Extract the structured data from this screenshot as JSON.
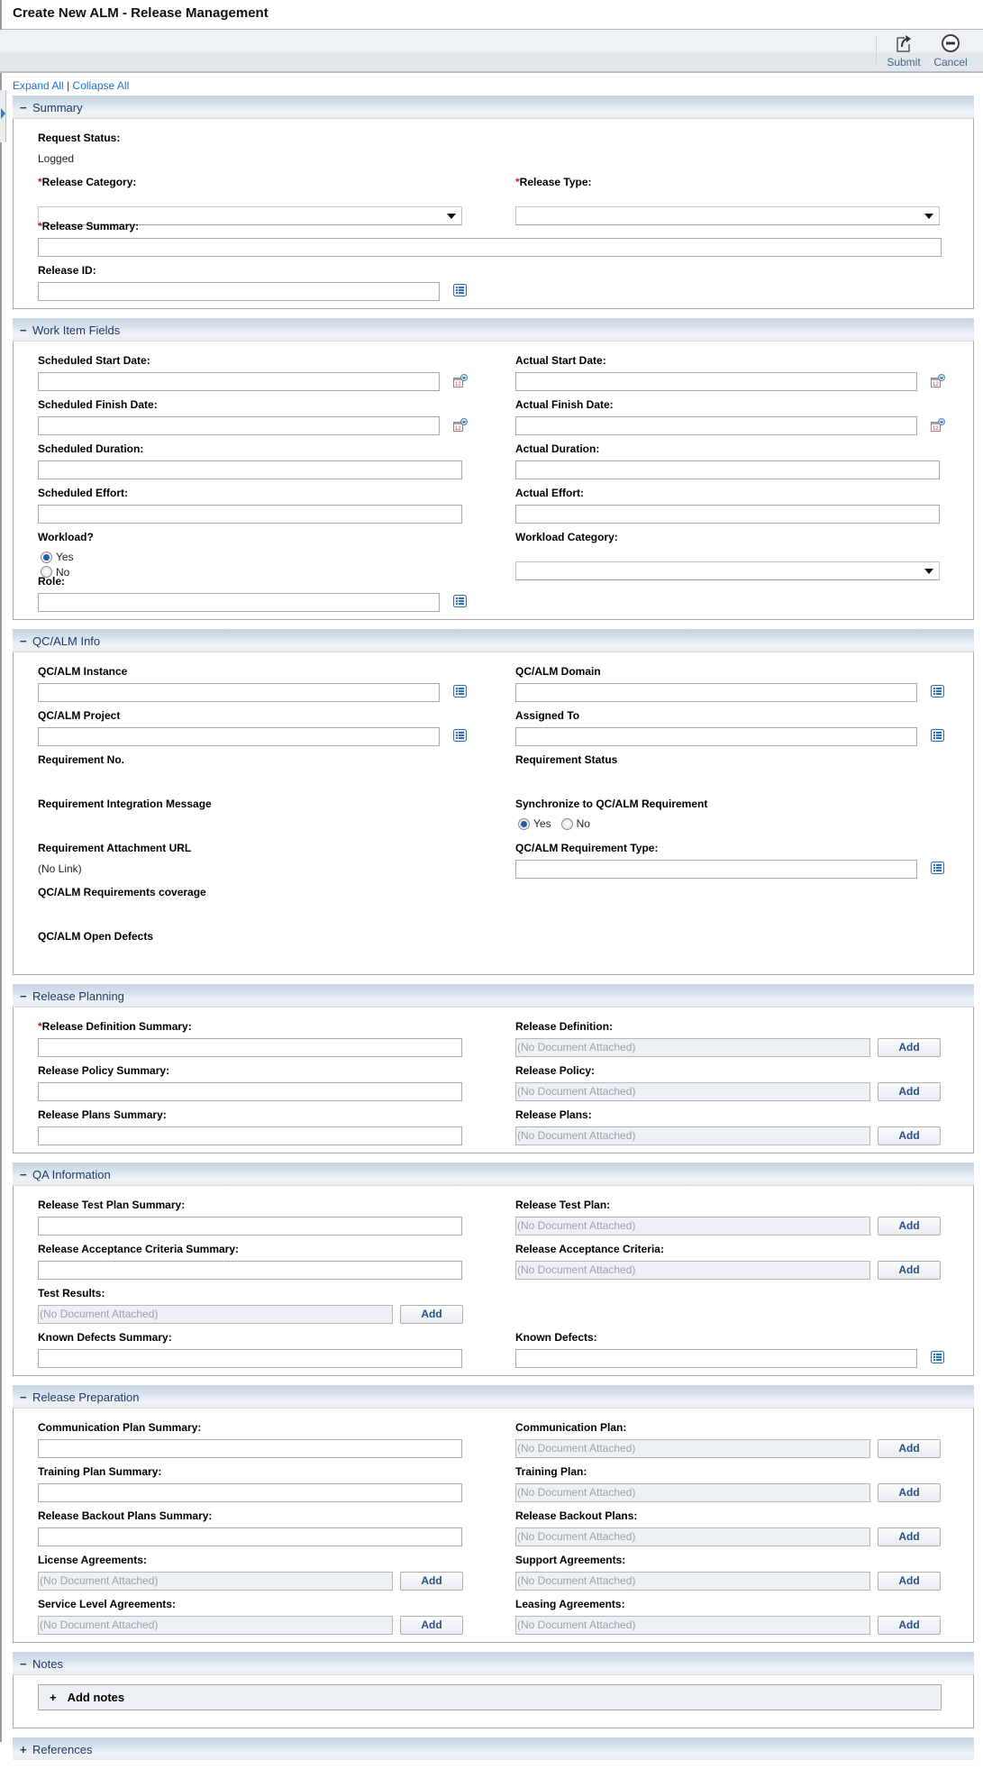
{
  "header": {
    "title": "Create New ALM - Release Management"
  },
  "toolbar": {
    "submit_label": "Submit",
    "cancel_label": "Cancel"
  },
  "expand": {
    "expand_all": "Expand All",
    "separator": "|",
    "collapse_all": "Collapse All"
  },
  "colors": {
    "link": "#1f6fc5",
    "required": "#d01c1c",
    "section_title": "#1e3b63",
    "button_text": "#2a4f86"
  },
  "sections": [
    {
      "title": "Summary",
      "expanded": true,
      "rows": [
        [
          {
            "label": "Request Status:",
            "type": "static",
            "value": "Logged"
          },
          null
        ],
        [
          {
            "label": "Release Category:",
            "type": "select",
            "required": true,
            "value": ""
          },
          {
            "label": "Release Type:",
            "type": "select",
            "required": true,
            "value": ""
          }
        ],
        [
          {
            "label": "Release Summary:",
            "type": "text",
            "required": true,
            "full": true,
            "value": ""
          },
          null
        ],
        [
          {
            "label": "Release ID:",
            "type": "lookup",
            "value": ""
          },
          null
        ]
      ]
    },
    {
      "title": "Work Item Fields",
      "expanded": true,
      "rows": [
        [
          {
            "label": "Scheduled Start Date:",
            "type": "date",
            "value": ""
          },
          {
            "label": "Actual Start Date:",
            "type": "date",
            "value": ""
          }
        ],
        [
          {
            "label": "Scheduled Finish Date:",
            "type": "date",
            "value": ""
          },
          {
            "label": "Actual Finish Date:",
            "type": "date",
            "value": ""
          }
        ],
        [
          {
            "label": "Scheduled Duration:",
            "type": "text",
            "value": ""
          },
          {
            "label": "Actual Duration:",
            "type": "text",
            "value": ""
          }
        ],
        [
          {
            "label": "Scheduled Effort:",
            "type": "text",
            "value": ""
          },
          {
            "label": "Actual Effort:",
            "type": "text",
            "value": ""
          }
        ],
        [
          {
            "label": "Workload?",
            "type": "radio",
            "options": [
              "Yes",
              "No"
            ],
            "value": "Yes"
          },
          {
            "label": "Workload Category:",
            "type": "select",
            "value": ""
          }
        ],
        [
          {
            "label": "Role:",
            "type": "lookup",
            "value": ""
          },
          null
        ]
      ]
    },
    {
      "title": "QC/ALM Info",
      "expanded": true,
      "rows": [
        [
          {
            "label": "QC/ALM Instance",
            "type": "lookup",
            "value": ""
          },
          {
            "label": "QC/ALM Domain",
            "type": "lookup",
            "value": ""
          }
        ],
        [
          {
            "label": "QC/ALM Project",
            "type": "lookup",
            "value": ""
          },
          {
            "label": "Assigned To",
            "type": "lookup",
            "value": ""
          }
        ],
        [
          {
            "label": "Requirement No.",
            "type": "none"
          },
          {
            "label": "Requirement Status",
            "type": "none"
          }
        ],
        [
          {
            "label": "Requirement Integration Message",
            "type": "none"
          },
          {
            "label": "Synchronize to QC/ALM Requirement",
            "type": "radio",
            "options": [
              "Yes",
              "No"
            ],
            "value": "Yes"
          }
        ],
        [
          {
            "label": "Requirement Attachment URL",
            "type": "static",
            "value": "(No Link)"
          },
          {
            "label": "QC/ALM Requirement Type:",
            "type": "lookup",
            "value": ""
          }
        ],
        [
          {
            "label": "QC/ALM Requirements coverage",
            "type": "none"
          },
          null
        ],
        [
          {
            "label": "QC/ALM Open Defects",
            "type": "none"
          },
          null
        ]
      ]
    },
    {
      "title": "Release Planning",
      "expanded": true,
      "rows": [
        [
          {
            "label": "Release Definition Summary:",
            "type": "text",
            "required": true,
            "value": ""
          },
          {
            "label": "Release Definition:",
            "type": "doc",
            "value": "(No Document Attached)",
            "button": "Add"
          }
        ],
        [
          {
            "label": "Release Policy Summary:",
            "type": "text",
            "value": ""
          },
          {
            "label": "Release Policy:",
            "type": "doc",
            "value": "(No Document Attached)",
            "button": "Add"
          }
        ],
        [
          {
            "label": "Release Plans Summary:",
            "type": "text",
            "value": ""
          },
          {
            "label": "Release Plans:",
            "type": "doc",
            "value": "(No Document Attached)",
            "button": "Add"
          }
        ]
      ]
    },
    {
      "title": "QA Information",
      "expanded": true,
      "rows": [
        [
          {
            "label": "Release Test Plan Summary:",
            "type": "text",
            "value": ""
          },
          {
            "label": "Release Test Plan:",
            "type": "doc",
            "value": "(No Document Attached)",
            "button": "Add"
          }
        ],
        [
          {
            "label": "Release Acceptance Criteria Summary:",
            "type": "text",
            "value": ""
          },
          {
            "label": "Release Acceptance Criteria:",
            "type": "doc",
            "value": "(No Document Attached)",
            "button": "Add"
          }
        ],
        [
          {
            "label": "Test Results:",
            "type": "doc",
            "value": "(No Document Attached)",
            "button": "Add"
          },
          null
        ],
        [
          {
            "label": "Known Defects Summary:",
            "type": "text",
            "value": ""
          },
          {
            "label": "Known Defects:",
            "type": "lookup",
            "value": ""
          }
        ]
      ]
    },
    {
      "title": "Release Preparation",
      "expanded": true,
      "rows": [
        [
          {
            "label": "Communication Plan Summary:",
            "type": "text",
            "value": ""
          },
          {
            "label": "Communication Plan:",
            "type": "doc",
            "value": "(No Document Attached)",
            "button": "Add"
          }
        ],
        [
          {
            "label": "Training Plan Summary:",
            "type": "text",
            "value": ""
          },
          {
            "label": "Training Plan:",
            "type": "doc",
            "value": "(No Document Attached)",
            "button": "Add"
          }
        ],
        [
          {
            "label": "Release Backout Plans Summary:",
            "type": "text",
            "value": ""
          },
          {
            "label": "Release Backout Plans:",
            "type": "doc",
            "value": "(No Document Attached)",
            "button": "Add"
          }
        ],
        [
          {
            "label": "License Agreements:",
            "type": "doc",
            "value": "(No Document Attached)",
            "button": "Add"
          },
          {
            "label": "Support Agreements:",
            "type": "doc",
            "value": "(No Document Attached)",
            "button": "Add"
          }
        ],
        [
          {
            "label": "Service Level Agreements:",
            "type": "doc",
            "value": "(No Document Attached)",
            "button": "Add"
          },
          {
            "label": "Leasing Agreements:",
            "type": "doc",
            "value": "(No Document Attached)",
            "button": "Add"
          }
        ]
      ]
    }
  ],
  "notes": {
    "title": "Notes",
    "expanded": true,
    "add_notes_label": "Add notes",
    "add_symbol": "+"
  },
  "references": {
    "title": "References",
    "expanded": false
  },
  "toggle_symbols": {
    "expanded": "−",
    "collapsed": "+"
  }
}
